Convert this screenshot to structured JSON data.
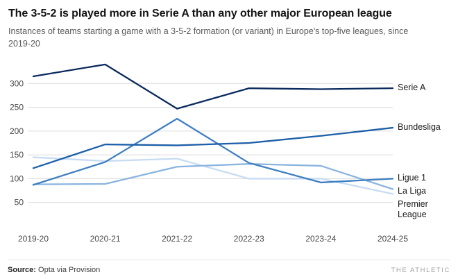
{
  "header": {
    "title": "The 3-5-2 is played more in Serie A than any other major European league",
    "subtitle": "Instances of teams starting a game with a 3-5-2 formation (or variant) in Europe's top-five leagues, since 2019-20"
  },
  "footer": {
    "source_label": "Source:",
    "source_text": " Opta via Provision",
    "brand": "THE ATHLETIC"
  },
  "chart_data": {
    "type": "line",
    "title": "The 3-5-2 is played more in Serie A than any other major European league",
    "subtitle": "Instances of teams starting a game with a 3-5-2 formation (or variant) in Europe's top-five leagues, since 2019-20",
    "x": [
      "2019-20",
      "2020-21",
      "2021-22",
      "2022-23",
      "2023-24",
      "2024-25"
    ],
    "series": [
      {
        "name": "Serie A",
        "color": "#0a2a5e",
        "values": [
          315,
          340,
          247,
          290,
          288,
          290
        ]
      },
      {
        "name": "Bundesliga",
        "color": "#1d5fa8",
        "values": [
          122,
          172,
          170,
          175,
          190,
          207
        ]
      },
      {
        "name": "Ligue 1",
        "color": "#3f7fc1",
        "values": [
          87,
          135,
          226,
          133,
          92,
          100
        ]
      },
      {
        "name": "La Liga",
        "color": "#8ab4e0",
        "values": [
          88,
          89,
          125,
          131,
          127,
          78
        ]
      },
      {
        "name": "Premier League",
        "color": "#c7dcf2",
        "values": [
          145,
          137,
          142,
          100,
          100,
          68
        ]
      }
    ],
    "yticks": [
      50,
      100,
      150,
      200,
      250,
      300
    ],
    "ylim": [
      0,
      350
    ],
    "grid": true,
    "legend_position": "right-end-labels",
    "xlabel": "",
    "ylabel": ""
  }
}
